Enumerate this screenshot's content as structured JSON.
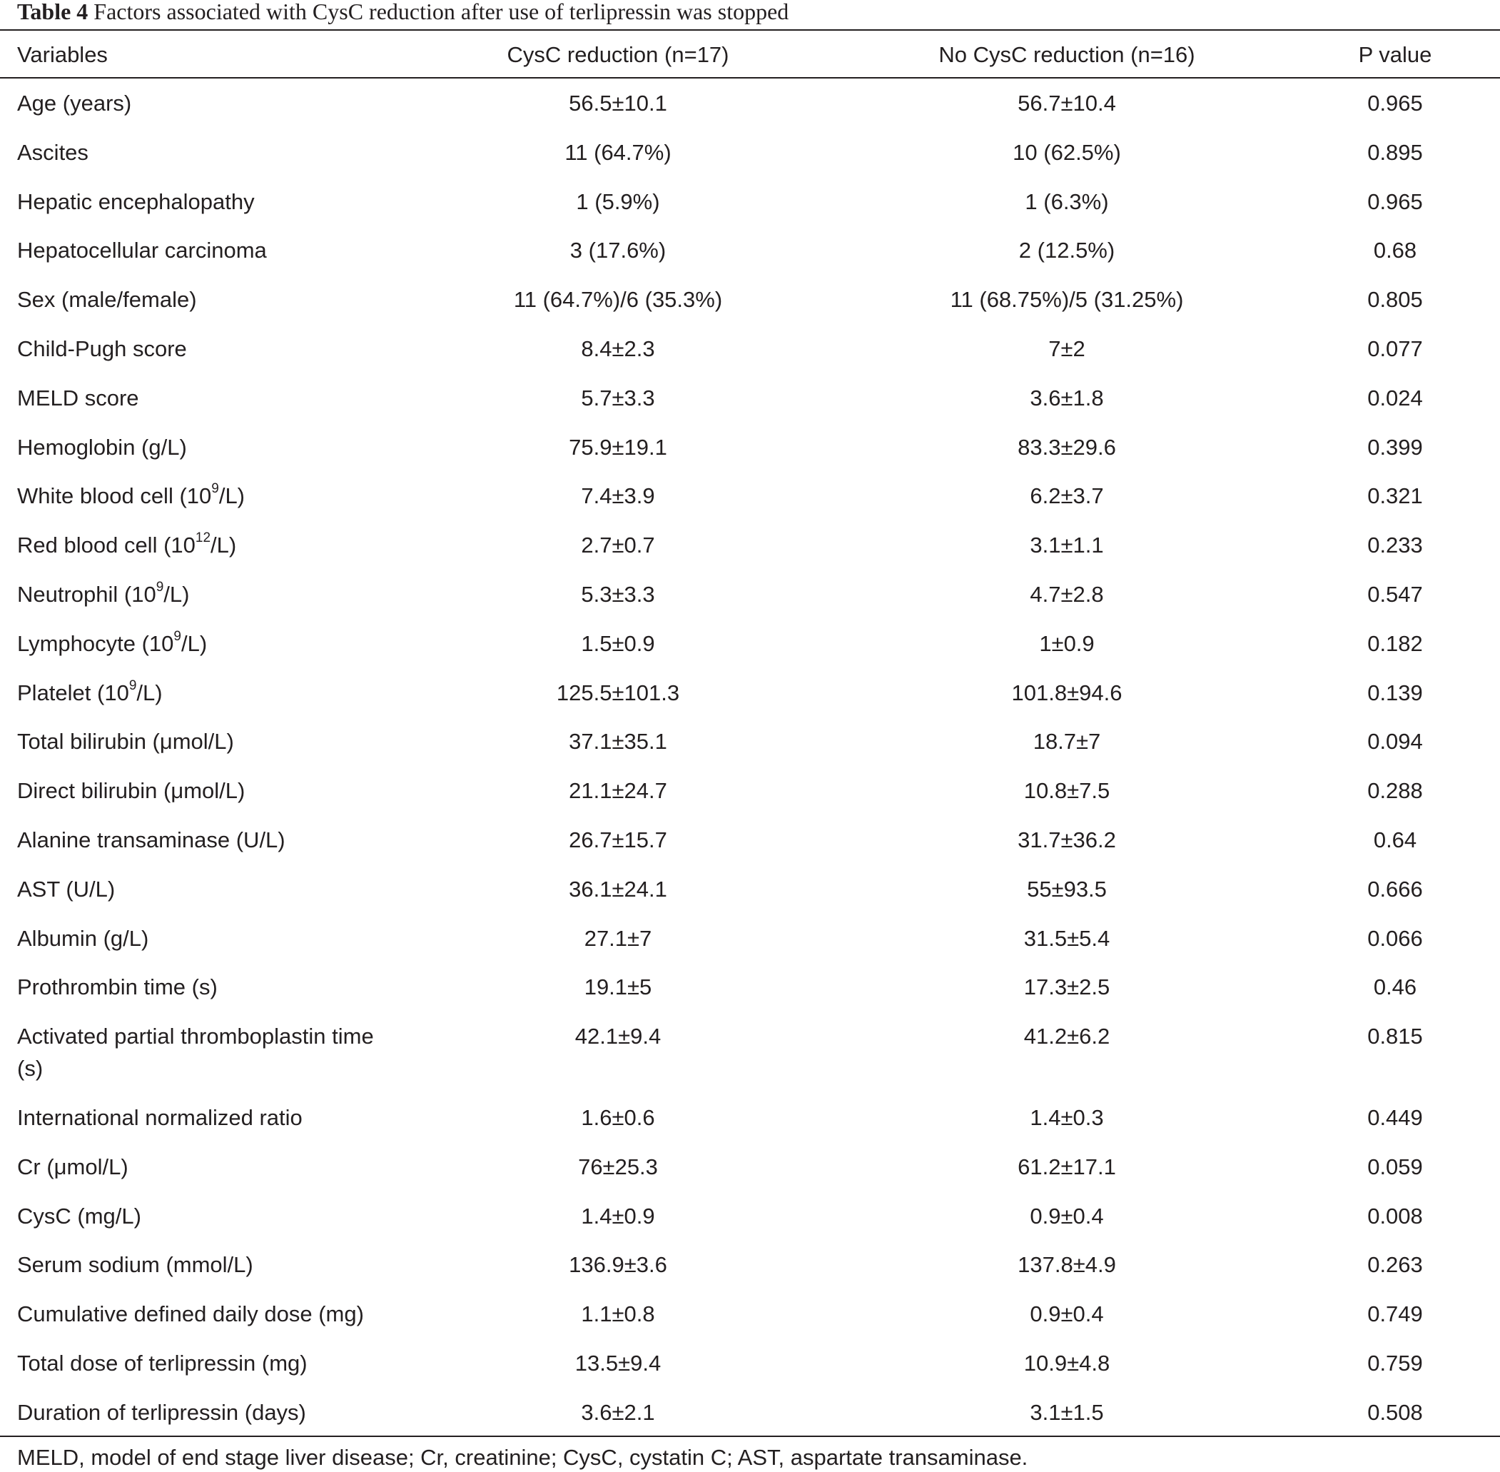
{
  "caption": {
    "label": "Table 4",
    "title": "Factors associated with CysC reduction after use of terlipressin was stopped"
  },
  "columns": {
    "variables": "Variables",
    "group_a": "CysC reduction (n=17)",
    "group_b": "No CysC reduction (n=16)",
    "p_value": "P value"
  },
  "rows": [
    {
      "variable": "Age (years)",
      "a": "56.5±10.1",
      "b": "56.7±10.4",
      "p": "0.965"
    },
    {
      "variable": "Ascites",
      "a": "11 (64.7%)",
      "b": "10 (62.5%)",
      "p": "0.895"
    },
    {
      "variable": "Hepatic encephalopathy",
      "a": "1 (5.9%)",
      "b": "1 (6.3%)",
      "p": "0.965"
    },
    {
      "variable": "Hepatocellular carcinoma",
      "a": "3 (17.6%)",
      "b": "2 (12.5%)",
      "p": "0.68"
    },
    {
      "variable": "Sex (male/female)",
      "a": "11 (64.7%)/6 (35.3%)",
      "b": "11 (68.75%)/5 (31.25%)",
      "p": "0.805"
    },
    {
      "variable": "Child-Pugh score",
      "a": "8.4±2.3",
      "b": "7±2",
      "p": "0.077"
    },
    {
      "variable": "MELD score",
      "a": "5.7±3.3",
      "b": "3.6±1.8",
      "p": "0.024"
    },
    {
      "variable": "Hemoglobin (g/L)",
      "a": "75.9±19.1",
      "b": "83.3±29.6",
      "p": "0.399"
    },
    {
      "variable": "White blood cell (10",
      "sup": "9",
      "suffix": "/L)",
      "a": "7.4±3.9",
      "b": "6.2±3.7",
      "p": "0.321"
    },
    {
      "variable": "Red blood cell (10",
      "sup": "12",
      "suffix": "/L)",
      "a": "2.7±0.7",
      "b": "3.1±1.1",
      "p": "0.233"
    },
    {
      "variable": "Neutrophil (10",
      "sup": "9",
      "suffix": "/L)",
      "a": "5.3±3.3",
      "b": "4.7±2.8",
      "p": "0.547"
    },
    {
      "variable": "Lymphocyte (10",
      "sup": "9",
      "suffix": "/L)",
      "a": "1.5±0.9",
      "b": "1±0.9",
      "p": "0.182"
    },
    {
      "variable": "Platelet (10",
      "sup": "9",
      "suffix": "/L)",
      "a": "125.5±101.3",
      "b": "101.8±94.6",
      "p": "0.139"
    },
    {
      "variable": "Total bilirubin (μmol/L)",
      "a": "37.1±35.1",
      "b": "18.7±7",
      "p": "0.094"
    },
    {
      "variable": "Direct bilirubin (μmol/L)",
      "a": "21.1±24.7",
      "b": "10.8±7.5",
      "p": "0.288"
    },
    {
      "variable": "Alanine transaminase (U/L)",
      "a": "26.7±15.7",
      "b": "31.7±36.2",
      "p": "0.64"
    },
    {
      "variable": "AST (U/L)",
      "a": "36.1±24.1",
      "b": "55±93.5",
      "p": "0.666"
    },
    {
      "variable": "Albumin (g/L)",
      "a": "27.1±7",
      "b": "31.5±5.4",
      "p": "0.066"
    },
    {
      "variable": "Prothrombin time (s)",
      "a": "19.1±5",
      "b": "17.3±2.5",
      "p": "0.46"
    },
    {
      "variable": "Activated partial thromboplastin time (s)",
      "a": "42.1±9.4",
      "b": "41.2±6.2",
      "p": "0.815"
    },
    {
      "variable": "International normalized ratio",
      "a": "1.6±0.6",
      "b": "1.4±0.3",
      "p": "0.449"
    },
    {
      "variable": "Cr (μmol/L)",
      "a": "76±25.3",
      "b": "61.2±17.1",
      "p": "0.059"
    },
    {
      "variable": "CysC (mg/L)",
      "a": "1.4±0.9",
      "b": "0.9±0.4",
      "p": "0.008"
    },
    {
      "variable": "Serum sodium (mmol/L)",
      "a": "136.9±3.6",
      "b": "137.8±4.9",
      "p": "0.263"
    },
    {
      "variable": "Cumulative defined daily dose (mg)",
      "a": "1.1±0.8",
      "b": "0.9±0.4",
      "p": "0.749"
    },
    {
      "variable": "Total dose of terlipressin (mg)",
      "a": "13.5±9.4",
      "b": "10.9±4.8",
      "p": "0.759"
    },
    {
      "variable": "Duration of terlipressin (days)",
      "a": "3.6±2.1",
      "b": "3.1±1.5",
      "p": "0.508"
    }
  ],
  "footnote": "MELD, model of end stage liver disease; Cr, creatinine; CysC, cystatin C; AST, aspartate transaminase."
}
